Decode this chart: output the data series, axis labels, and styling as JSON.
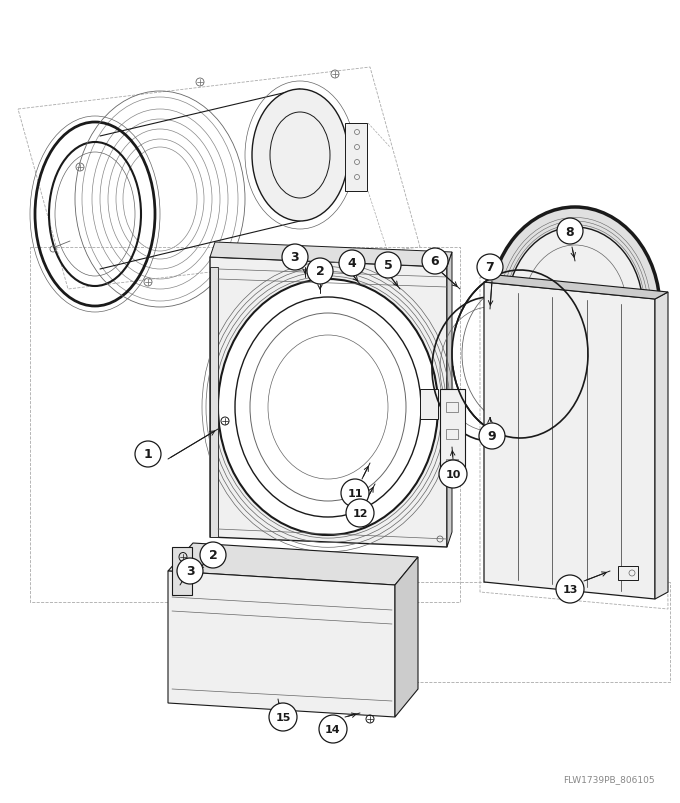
{
  "watermark": "FLW1739PB_806105",
  "bg": "#ffffff",
  "figsize": [
    6.8,
    8.04
  ],
  "dpi": 100,
  "dark": "#1a1a1a",
  "mid": "#666666",
  "light": "#aaaaaa",
  "fill_light": "#f0f0f0",
  "fill_mid": "#e0e0e0",
  "fill_dark": "#cccccc"
}
